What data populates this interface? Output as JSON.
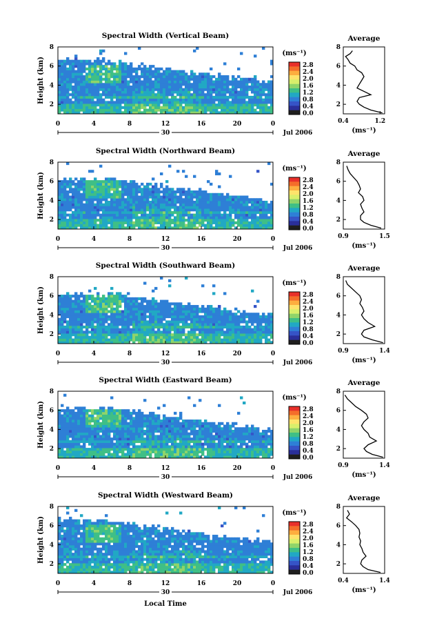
{
  "colorbar": {
    "unit_label": "(ms⁻¹)",
    "tick_labels": [
      "2.8",
      "2.4",
      "2.0",
      "1.6",
      "1.2",
      "0.8",
      "0.4",
      "0.0"
    ],
    "colors": [
      "#e8302a",
      "#f46d2a",
      "#fdae3f",
      "#fee36b",
      "#d9ef6b",
      "#8fd46a",
      "#3fbf86",
      "#21a8c4",
      "#2e7fd6",
      "#3654c7",
      "#2a2f9a",
      "#1f1f1f"
    ]
  },
  "x_axis": {
    "tick_labels": [
      "0",
      "4",
      "8",
      "12",
      "16",
      "20",
      "0"
    ],
    "date_label": "30",
    "month_label": "Jul 2006",
    "xlabel": "Local Time"
  },
  "panels": [
    {
      "title": "Spectral Width (Vertical Beam)",
      "ylabel": "Height (km)",
      "y_ticks": [
        "8",
        "6",
        "4",
        "2"
      ]
    },
    {
      "title": "Spectral Width (Northward Beam)",
      "ylabel": "Height (km)",
      "y_ticks": [
        "8",
        "6",
        "4",
        "2"
      ]
    },
    {
      "title": "Spectral Width (Southward Beam)",
      "ylabel": "Height (km)",
      "y_ticks": [
        "8",
        "6",
        "4",
        "2"
      ]
    },
    {
      "title": "Spectral Width (Eastward Beam)",
      "ylabel": "Height (km)",
      "y_ticks": [
        "8",
        "6",
        "4",
        "2"
      ]
    },
    {
      "title": "Spectral Width (Westward Beam)",
      "ylabel": "Height (km)",
      "y_ticks": [
        "8",
        "6",
        "4",
        "2"
      ]
    }
  ],
  "averages": [
    {
      "title": "Average",
      "unit": "(ms⁻¹)",
      "x_ticks": [
        "0.4",
        "1.2"
      ],
      "y_ticks": [
        "8",
        "6",
        "4",
        "2"
      ]
    },
    {
      "title": "Average",
      "unit": "(ms⁻¹)",
      "x_ticks": [
        "0.9",
        "1.5"
      ],
      "y_ticks": [
        "8",
        "6",
        "4",
        "2"
      ]
    },
    {
      "title": "Average",
      "unit": "(ms⁻¹)",
      "x_ticks": [
        "0.9",
        "1.4"
      ],
      "y_ticks": [
        "8",
        "6",
        "4",
        "2"
      ]
    },
    {
      "title": "Average",
      "unit": "(ms⁻¹)",
      "x_ticks": [
        "0.9",
        "1.4"
      ],
      "y_ticks": [
        "8",
        "6",
        "4",
        "2"
      ]
    },
    {
      "title": "Average",
      "unit": "(ms⁻¹)",
      "x_ticks": [
        "0.4",
        "1.4"
      ],
      "y_ticks": [
        "8",
        "6",
        "4",
        "2"
      ]
    }
  ],
  "chart_data": [
    {
      "type": "heatmap",
      "title": "Spectral Width (Vertical Beam)",
      "xlabel": "",
      "ylabel": "Height (km)",
      "xlim": [
        0,
        24
      ],
      "ylim": [
        1,
        8
      ],
      "colorbar_range": [
        0.0,
        2.8
      ]
    },
    {
      "type": "line",
      "title": "Average",
      "xlabel": "(ms⁻¹)",
      "ylabel": "",
      "xlim": [
        0.4,
        1.3
      ],
      "ylim": [
        1,
        8
      ],
      "x": [
        0.6,
        0.55,
        0.45,
        0.5,
        0.55,
        0.65,
        0.7,
        0.8,
        0.85,
        0.8,
        0.75,
        0.7,
        1.0,
        0.75,
        0.7,
        0.75,
        0.85,
        1.0,
        1.25
      ],
      "y": [
        7.6,
        7.3,
        7.0,
        6.7,
        6.3,
        6.0,
        5.6,
        5.3,
        4.9,
        4.5,
        4.1,
        3.7,
        3.0,
        2.7,
        2.3,
        2.0,
        1.7,
        1.4,
        1.1
      ]
    },
    {
      "type": "heatmap",
      "title": "Spectral Width (Northward Beam)",
      "xlabel": "",
      "ylabel": "Height (km)",
      "xlim": [
        0,
        24
      ],
      "ylim": [
        1,
        8
      ],
      "colorbar_range": [
        0.0,
        2.8
      ]
    },
    {
      "type": "line",
      "title": "Average",
      "xlabel": "(ms⁻¹)",
      "ylabel": "",
      "xlim": [
        0.9,
        1.5
      ],
      "ylim": [
        1,
        8
      ],
      "x": [
        0.95,
        0.97,
        1.0,
        1.05,
        1.1,
        1.13,
        1.15,
        1.12,
        1.18,
        1.2,
        1.15,
        1.17,
        1.2,
        1.15,
        1.15,
        1.2,
        1.3,
        1.45
      ],
      "y": [
        7.6,
        7.2,
        6.8,
        6.4,
        6.0,
        5.6,
        5.2,
        4.8,
        4.4,
        4.0,
        3.6,
        3.2,
        2.8,
        2.4,
        2.0,
        1.7,
        1.4,
        1.1
      ]
    },
    {
      "type": "heatmap",
      "title": "Spectral Width (Southward Beam)",
      "xlabel": "",
      "ylabel": "Height (km)",
      "xlim": [
        0,
        24
      ],
      "ylim": [
        1,
        8
      ],
      "colorbar_range": [
        0.0,
        2.8
      ]
    },
    {
      "type": "line",
      "title": "Average",
      "xlabel": "(ms⁻¹)",
      "ylabel": "",
      "xlim": [
        0.9,
        1.4
      ],
      "ylim": [
        1,
        8
      ],
      "x": [
        0.93,
        0.95,
        1.0,
        1.05,
        1.1,
        1.12,
        1.1,
        1.13,
        1.15,
        1.12,
        1.15,
        1.2,
        1.28,
        1.15,
        1.12,
        1.15,
        1.25,
        1.38
      ],
      "y": [
        7.6,
        7.2,
        6.8,
        6.4,
        6.0,
        5.6,
        5.2,
        4.8,
        4.4,
        4.0,
        3.6,
        3.2,
        2.8,
        2.4,
        2.0,
        1.7,
        1.4,
        1.1
      ]
    },
    {
      "type": "heatmap",
      "title": "Spectral Width (Eastward Beam)",
      "xlabel": "",
      "ylabel": "Height (km)",
      "xlim": [
        0,
        24
      ],
      "ylim": [
        1,
        8
      ],
      "colorbar_range": [
        0.0,
        2.8
      ]
    },
    {
      "type": "line",
      "title": "Average",
      "xlabel": "(ms⁻¹)",
      "ylabel": "",
      "xlim": [
        0.9,
        1.4
      ],
      "ylim": [
        1,
        8
      ],
      "x": [
        0.92,
        0.95,
        1.0,
        1.05,
        1.12,
        1.18,
        1.2,
        1.15,
        1.12,
        1.15,
        1.2,
        1.22,
        1.3,
        1.2,
        1.15,
        1.18,
        1.25,
        1.38
      ],
      "y": [
        7.6,
        7.2,
        6.8,
        6.4,
        6.0,
        5.6,
        5.2,
        4.8,
        4.4,
        4.0,
        3.6,
        3.2,
        2.8,
        2.4,
        2.0,
        1.7,
        1.4,
        1.1
      ]
    },
    {
      "type": "heatmap",
      "title": "Spectral Width (Westward Beam)",
      "xlabel": "Local Time",
      "ylabel": "Height (km)",
      "xlim": [
        0,
        24
      ],
      "ylim": [
        1,
        8
      ],
      "colorbar_range": [
        0.0,
        2.8
      ]
    },
    {
      "type": "line",
      "title": "Average",
      "xlabel": "(ms⁻¹)",
      "ylabel": "",
      "xlim": [
        0.4,
        1.4
      ],
      "ylim": [
        1,
        8
      ],
      "x": [
        0.5,
        0.55,
        0.48,
        0.6,
        0.7,
        0.78,
        0.8,
        0.78,
        0.82,
        0.8,
        0.85,
        0.88,
        0.95,
        0.85,
        0.82,
        0.88,
        1.0,
        1.3
      ],
      "y": [
        7.6,
        7.2,
        6.8,
        6.4,
        6.0,
        5.6,
        5.2,
        4.8,
        4.4,
        4.0,
        3.6,
        3.2,
        2.8,
        2.4,
        2.0,
        1.7,
        1.4,
        1.1
      ]
    }
  ]
}
